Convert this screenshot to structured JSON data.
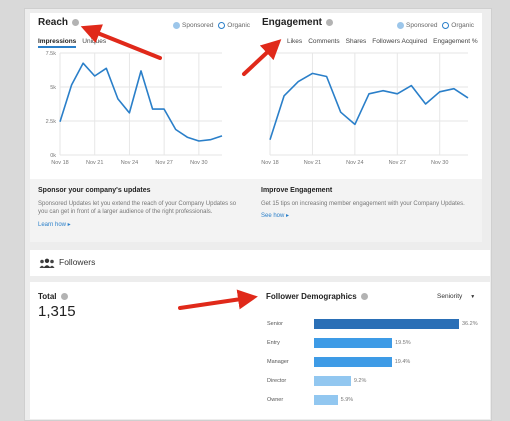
{
  "reach": {
    "title": "Reach",
    "legend": {
      "sponsored": "Sponsored",
      "organic": "Organic"
    },
    "tabs": [
      "Impressions",
      "Uniques"
    ],
    "chart_data": {
      "type": "line",
      "x": [
        "Nov 18",
        "Nov 19",
        "Nov 20",
        "Nov 21",
        "Nov 22",
        "Nov 23",
        "Nov 24",
        "Nov 25",
        "Nov 26",
        "Nov 27",
        "Nov 28",
        "Nov 29",
        "Nov 30",
        "Dec 1",
        "Dec 2"
      ],
      "x_tick_labels": [
        "Nov 18",
        "Nov 21",
        "Nov 24",
        "Nov 27",
        "Nov 30"
      ],
      "y_tick_labels": [
        "7.5k",
        "5k",
        "2.5k",
        "0k"
      ],
      "ylim": [
        0,
        8000
      ],
      "series": [
        {
          "name": "Organic",
          "values": [
            2600,
            5500,
            7200,
            6200,
            6800,
            4400,
            3300,
            6600,
            3600,
            3600,
            2000,
            1400,
            1100,
            1200,
            1500
          ]
        }
      ],
      "grid": true
    }
  },
  "engagement": {
    "title": "Engagement",
    "legend": {
      "sponsored": "Sponsored",
      "organic": "Organic"
    },
    "tabs": [
      "Likes",
      "Comments",
      "Shares",
      "Followers Acquired",
      "Engagement %"
    ],
    "chart_data": {
      "type": "line",
      "x": [
        "Nov 18",
        "Nov 19",
        "Nov 20",
        "Nov 21",
        "Nov 22",
        "Nov 23",
        "Nov 24",
        "Nov 25",
        "Nov 26",
        "Nov 27",
        "Nov 28",
        "Nov 29",
        "Nov 30",
        "Dec 1",
        "Dec 2"
      ],
      "x_tick_labels": [
        "Nov 18",
        "Nov 21",
        "Nov 24",
        "Nov 27",
        "Nov 30"
      ],
      "y_tick_labels": [],
      "ylim": [
        0,
        100
      ],
      "series": [
        {
          "name": "Organic",
          "values": [
            15,
            58,
            72,
            80,
            77,
            42,
            30,
            60,
            63,
            60,
            68,
            50,
            62,
            65,
            56
          ]
        }
      ],
      "grid": true
    }
  },
  "promo": {
    "left_title": "Sponsor your company's updates",
    "left_body_1": "Sponsored Updates let you extend the reach of your Company Updates so",
    "left_body_2": "you can get in front of a larger audience of the right professionals.",
    "left_link": "Learn how ▸",
    "right_title": "Improve Engagement",
    "right_body": "Get 15 tips on increasing member engagement with your Company Updates.",
    "right_link": "See how ▸"
  },
  "followers_header": {
    "label": "Followers"
  },
  "followers": {
    "total_label": "Total",
    "total_value": "1,315",
    "demographics_title": "Follower Demographics",
    "dropdown": "Seniority",
    "chart_data": {
      "type": "bar",
      "categories": [
        "Senior",
        "Entry",
        "Manager",
        "Director",
        "Owner"
      ],
      "values": [
        36.2,
        19.5,
        19.4,
        9.2,
        5.9
      ],
      "value_labels": [
        "36.2%",
        "19.5%",
        "19.4%",
        "9.2%",
        "5.9%"
      ],
      "colors": [
        "#2a6fb6",
        "#3e9be6",
        "#3e9be6",
        "#92c7f0",
        "#92c7f0"
      ]
    }
  }
}
